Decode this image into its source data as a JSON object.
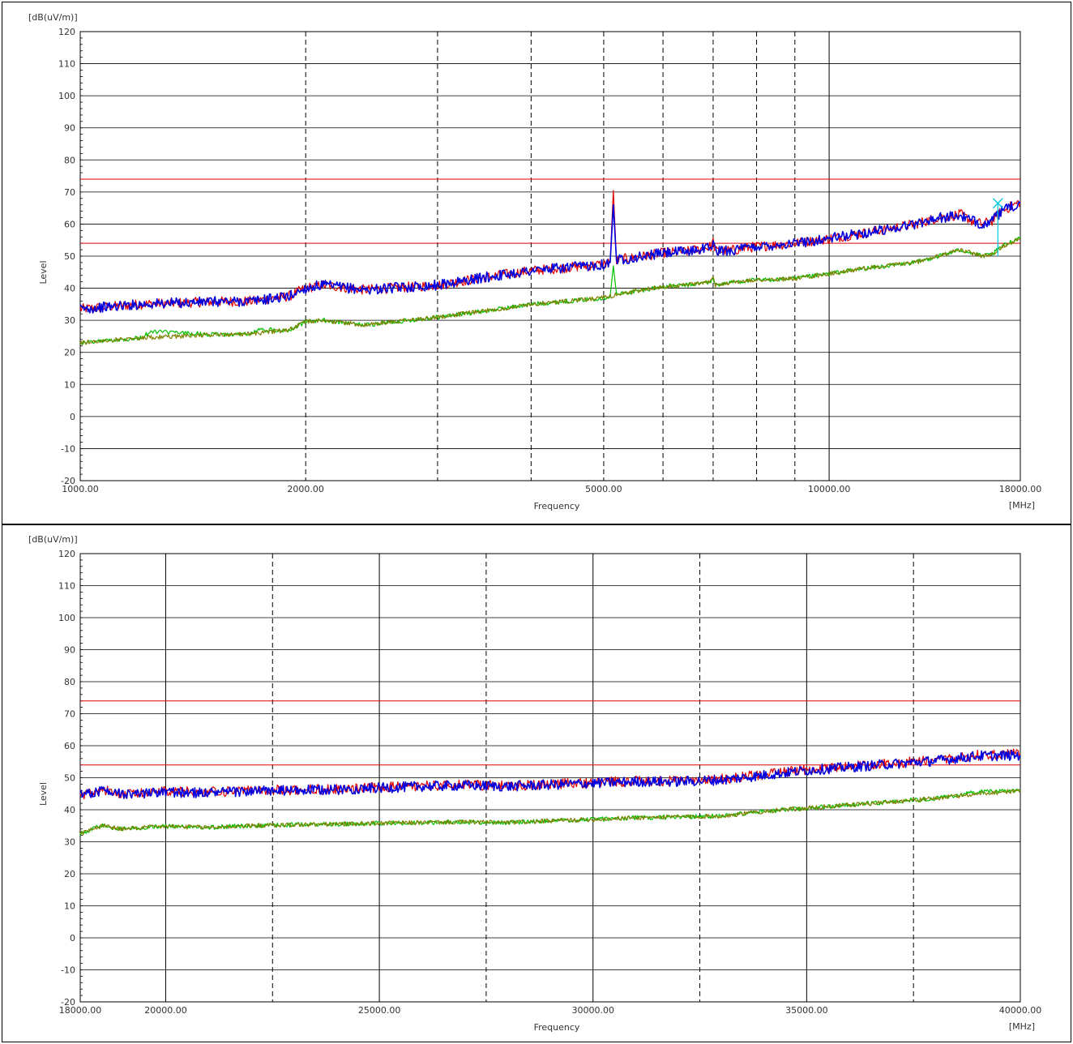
{
  "chart_data": [
    {
      "type": "line",
      "xscale": "log",
      "xlim": [
        1000,
        18000
      ],
      "ylim": [
        -20,
        120
      ],
      "yunit": "[dB(uV/m)]",
      "xunit": "[MHz]",
      "xlabel": "Frequency",
      "ylabel": "Level",
      "yticks": [
        -20,
        -10,
        0,
        10,
        20,
        30,
        40,
        50,
        60,
        70,
        80,
        90,
        100,
        110,
        120
      ],
      "xtick_labels": [
        {
          "value": 1000,
          "label": "1000.00"
        },
        {
          "value": 2000,
          "label": "2000.00"
        },
        {
          "value": 5000,
          "label": "5000.00"
        },
        {
          "value": 10000,
          "label": "10000.00"
        },
        {
          "value": 18000,
          "label": "18000.00"
        }
      ],
      "grid": true,
      "vertical_dashed_lines": [
        2000,
        3000,
        4000,
        5000,
        6000,
        7000,
        8000,
        9000
      ],
      "vertical_solid_lines": [
        10000
      ],
      "limit_lines": [
        {
          "value": 74,
          "color": "#e00000"
        },
        {
          "value": 54,
          "color": "#e00000"
        }
      ],
      "series": [
        {
          "color": "#e00000",
          "x": [
            1000,
            1200,
            1500,
            1700,
            1900,
            2000,
            2100,
            2400,
            3000,
            3500,
            4000,
            4500,
            5000,
            5100,
            5150,
            5200,
            5250,
            5500,
            6000,
            6500,
            6950,
            7000,
            7050,
            7500,
            8000,
            9000,
            10000,
            11000,
            12000,
            13000,
            14000,
            15000,
            15500,
            16000,
            16500,
            17000,
            18000
          ],
          "y": [
            33.5,
            35.0,
            35.8,
            36.0,
            37.5,
            40.0,
            41.0,
            39.5,
            41.0,
            43.5,
            45.5,
            46.5,
            47.5,
            48.0,
            70.5,
            48.5,
            49.0,
            49.5,
            51.0,
            51.5,
            53.0,
            54.5,
            51.5,
            52.0,
            53.0,
            54.0,
            55.5,
            57.0,
            58.5,
            60.0,
            62.0,
            63.0,
            61.0,
            60.0,
            61.0,
            64.0,
            67.0
          ]
        },
        {
          "color": "#0000e0",
          "x": [
            1000,
            1200,
            1500,
            1700,
            1900,
            2000,
            2100,
            2400,
            3000,
            3500,
            4000,
            4500,
            5000,
            5100,
            5150,
            5200,
            5250,
            5500,
            6000,
            6500,
            6950,
            7000,
            7050,
            7500,
            8000,
            9000,
            10000,
            11000,
            12000,
            13000,
            14000,
            15000,
            15500,
            16000,
            16500,
            17000,
            18000
          ],
          "y": [
            33.5,
            35.0,
            35.8,
            36.0,
            37.5,
            40.0,
            41.0,
            39.5,
            41.0,
            43.5,
            45.5,
            46.5,
            47.5,
            48.0,
            66.0,
            48.5,
            49.0,
            49.5,
            51.0,
            51.5,
            53.0,
            54.0,
            51.5,
            52.0,
            53.0,
            54.0,
            55.5,
            57.0,
            58.5,
            60.0,
            62.0,
            62.5,
            61.0,
            60.0,
            61.0,
            64.0,
            66.5
          ]
        },
        {
          "color": "#00c000",
          "x": [
            1000,
            1200,
            1250,
            1500,
            1700,
            1720,
            1900,
            2000,
            2100,
            2400,
            3000,
            3500,
            4000,
            4500,
            5000,
            5100,
            5150,
            5200,
            5500,
            6000,
            6500,
            6950,
            7000,
            7050,
            7500,
            8000,
            9000,
            10000,
            11000,
            12000,
            13000,
            14000,
            15000,
            15500,
            16000,
            16500,
            17000,
            18000
          ],
          "y": [
            23.0,
            24.5,
            26.5,
            25.5,
            25.8,
            27.0,
            27.0,
            29.5,
            30.0,
            28.5,
            31.0,
            33.0,
            35.0,
            36.0,
            37.0,
            37.5,
            47.0,
            38.0,
            39.0,
            40.5,
            41.0,
            42.0,
            43.0,
            41.0,
            42.0,
            42.5,
            43.0,
            44.5,
            46.0,
            47.0,
            48.0,
            50.0,
            52.0,
            51.0,
            50.0,
            50.5,
            53.0,
            56.0
          ]
        },
        {
          "color": "#808000",
          "x": [
            1000,
            1200,
            1500,
            1700,
            1900,
            2000,
            2100,
            2400,
            3000,
            3500,
            4000,
            4500,
            5000,
            5100,
            5200,
            5500,
            6000,
            6500,
            6950,
            7000,
            7050,
            7500,
            8000,
            9000,
            10000,
            11000,
            12000,
            13000,
            14000,
            15000,
            15500,
            16000,
            16500,
            17000,
            18000
          ],
          "y": [
            23.0,
            24.5,
            25.5,
            25.8,
            27.0,
            29.5,
            30.0,
            28.5,
            31.0,
            33.0,
            35.0,
            36.0,
            37.0,
            37.5,
            38.0,
            39.0,
            40.5,
            41.0,
            42.0,
            43.0,
            41.0,
            42.0,
            42.5,
            43.0,
            44.5,
            46.0,
            47.0,
            48.0,
            50.0,
            52.0,
            51.0,
            50.0,
            50.5,
            53.0,
            55.5
          ]
        }
      ],
      "markers": [
        {
          "x": 16800,
          "y": 66.5,
          "base": 50,
          "symbol": "x",
          "color": "#00c8e0"
        }
      ]
    },
    {
      "type": "line",
      "xscale": "linear",
      "xlim": [
        18000,
        40000
      ],
      "ylim": [
        -20,
        120
      ],
      "yunit": "[dB(uV/m)]",
      "xunit": "[MHz]",
      "xlabel": "Frequency",
      "ylabel": "Level",
      "yticks": [
        -20,
        -10,
        0,
        10,
        20,
        30,
        40,
        50,
        60,
        70,
        80,
        90,
        100,
        110,
        120
      ],
      "xtick_labels": [
        {
          "value": 18000,
          "label": "18000.00"
        },
        {
          "value": 20000,
          "label": "20000.00"
        },
        {
          "value": 25000,
          "label": "25000.00"
        },
        {
          "value": 30000,
          "label": "30000.00"
        },
        {
          "value": 35000,
          "label": "35000.00"
        },
        {
          "value": 40000,
          "label": "40000.00"
        }
      ],
      "grid": true,
      "vertical_dashed_lines": [
        22500,
        27500,
        32500,
        37500
      ],
      "vertical_solid_lines": [
        20000,
        25000,
        30000,
        35000
      ],
      "limit_lines": [
        {
          "value": 74,
          "color": "#e00000"
        },
        {
          "value": 54,
          "color": "#e00000"
        }
      ],
      "series": [
        {
          "color": "#e00000",
          "x": [
            18000,
            18500,
            19000,
            20000,
            21000,
            22000,
            23000,
            24000,
            25000,
            26000,
            27000,
            28000,
            29000,
            30000,
            31000,
            32000,
            33000,
            34000,
            35000,
            36000,
            37000,
            38000,
            39000,
            40000
          ],
          "y": [
            44.5,
            46.5,
            45.0,
            45.8,
            45.5,
            46.0,
            46.2,
            46.5,
            47.0,
            47.5,
            47.8,
            47.5,
            48.0,
            48.5,
            49.0,
            49.0,
            49.5,
            51.0,
            52.5,
            53.5,
            54.5,
            55.5,
            57.0,
            57.5
          ]
        },
        {
          "color": "#0000e0",
          "x": [
            18000,
            18500,
            19000,
            20000,
            21000,
            22000,
            23000,
            24000,
            25000,
            26000,
            27000,
            28000,
            29000,
            30000,
            31000,
            32000,
            33000,
            34000,
            35000,
            36000,
            37000,
            38000,
            39000,
            40000
          ],
          "y": [
            44.5,
            46.0,
            45.0,
            45.5,
            45.3,
            45.8,
            46.0,
            46.3,
            46.8,
            47.3,
            47.6,
            47.3,
            47.8,
            48.3,
            48.8,
            48.8,
            49.3,
            50.8,
            52.3,
            53.3,
            54.3,
            55.3,
            56.8,
            57.0
          ]
        },
        {
          "color": "#00c000",
          "x": [
            18000,
            18500,
            19000,
            20000,
            21000,
            22000,
            23000,
            24000,
            25000,
            26000,
            27000,
            28000,
            29000,
            30000,
            31000,
            32000,
            33000,
            34000,
            35000,
            36000,
            37000,
            38000,
            39000,
            40000
          ],
          "y": [
            32.5,
            35.0,
            34.0,
            34.8,
            34.5,
            35.0,
            35.3,
            35.5,
            35.8,
            36.0,
            36.2,
            36.0,
            36.5,
            37.0,
            37.5,
            37.8,
            38.0,
            39.5,
            40.5,
            41.5,
            42.5,
            43.5,
            45.5,
            46.0
          ]
        },
        {
          "color": "#808000",
          "x": [
            18000,
            18500,
            19000,
            20000,
            21000,
            22000,
            23000,
            24000,
            25000,
            26000,
            27000,
            28000,
            29000,
            30000,
            31000,
            32000,
            33000,
            34000,
            35000,
            36000,
            37000,
            38000,
            39000,
            40000
          ],
          "y": [
            32.5,
            35.0,
            34.0,
            34.8,
            34.5,
            35.0,
            35.3,
            35.5,
            35.8,
            36.0,
            36.2,
            36.0,
            36.5,
            37.0,
            37.5,
            37.8,
            38.0,
            39.5,
            40.5,
            41.5,
            42.5,
            43.5,
            45.0,
            46.0
          ]
        }
      ]
    }
  ]
}
